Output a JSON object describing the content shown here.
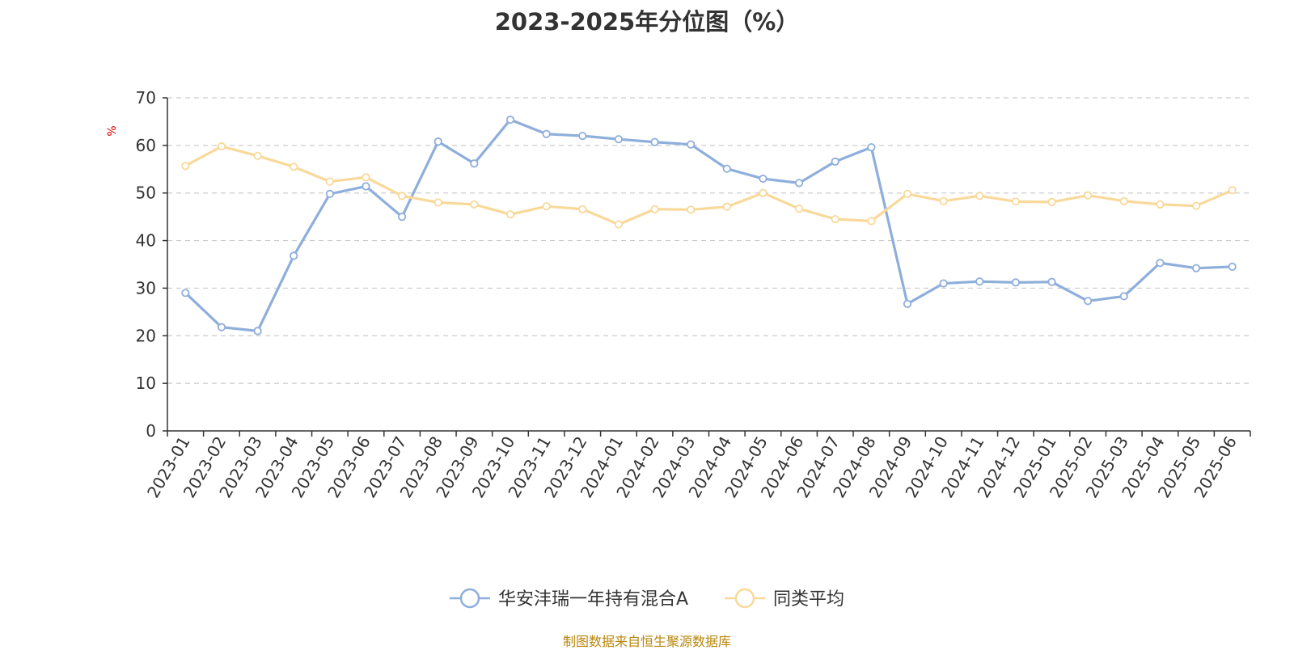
{
  "chart_data": {
    "type": "line",
    "title": "2023-2025年分位图（%）",
    "ylabel": "%",
    "ylim": [
      0,
      70
    ],
    "yticks": [
      0,
      10,
      20,
      30,
      40,
      50,
      60,
      70
    ],
    "grid": true,
    "legend_position": "bottom",
    "categories": [
      "2023-01",
      "2023-02",
      "2023-03",
      "2023-04",
      "2023-05",
      "2023-06",
      "2023-07",
      "2023-08",
      "2023-09",
      "2023-10",
      "2023-11",
      "2023-12",
      "2024-01",
      "2024-02",
      "2024-03",
      "2024-04",
      "2024-05",
      "2024-06",
      "2024-07",
      "2024-08",
      "2024-09",
      "2024-10",
      "2024-11",
      "2024-12",
      "2025-01",
      "2025-02",
      "2025-03",
      "2025-04",
      "2025-05",
      "2025-06"
    ],
    "series": [
      {
        "name": "华安沣瑞一年持有混合A",
        "color": "#8eaedb",
        "values": [
          29.0,
          21.8,
          21.0,
          36.8,
          49.8,
          51.4,
          45.0,
          60.8,
          56.2,
          65.4,
          62.4,
          62.0,
          61.3,
          60.7,
          60.2,
          55.1,
          53.0,
          52.1,
          56.6,
          59.6,
          26.7,
          31.0,
          31.4,
          31.2,
          31.3,
          27.3,
          28.3,
          35.3,
          34.2,
          34.5
        ]
      },
      {
        "name": "同类平均",
        "color": "#f9d99a",
        "values": [
          55.7,
          59.8,
          57.8,
          55.5,
          52.4,
          53.3,
          49.4,
          48.0,
          47.6,
          45.5,
          47.2,
          46.6,
          43.4,
          46.6,
          46.5,
          47.1,
          50.0,
          46.7,
          44.5,
          44.1,
          49.8,
          48.3,
          49.4,
          48.2,
          48.1,
          49.5,
          48.3,
          47.6,
          47.3,
          50.6
        ]
      }
    ]
  },
  "source_note": "制图数据来自恒生聚源数据库",
  "colors": {
    "axis": "#333333",
    "grid": "#cccccc",
    "ylabel": "#e00000",
    "source": "#b8860b"
  }
}
